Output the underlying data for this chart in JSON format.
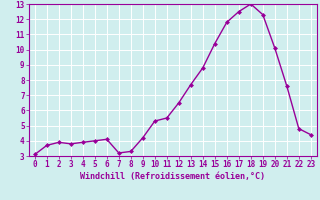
{
  "x": [
    0,
    1,
    2,
    3,
    4,
    5,
    6,
    7,
    8,
    9,
    10,
    11,
    12,
    13,
    14,
    15,
    16,
    17,
    18,
    19,
    20,
    21,
    22,
    23
  ],
  "y": [
    3.1,
    3.7,
    3.9,
    3.8,
    3.9,
    4.0,
    4.1,
    3.2,
    3.3,
    4.2,
    5.3,
    5.5,
    6.5,
    7.7,
    8.8,
    10.4,
    11.8,
    12.5,
    13.0,
    12.3,
    10.1,
    7.6,
    4.8,
    4.4
  ],
  "line_color": "#990099",
  "marker": "D",
  "marker_size": 2.0,
  "bg_color": "#d0eeee",
  "grid_color": "#ffffff",
  "xlabel": "Windchill (Refroidissement éolien,°C)",
  "xlabel_color": "#990099",
  "tick_color": "#990099",
  "ylim": [
    3,
    13
  ],
  "xlim": [
    -0.5,
    23.5
  ],
  "yticks": [
    3,
    4,
    5,
    6,
    7,
    8,
    9,
    10,
    11,
    12,
    13
  ],
  "xticks": [
    0,
    1,
    2,
    3,
    4,
    5,
    6,
    7,
    8,
    9,
    10,
    11,
    12,
    13,
    14,
    15,
    16,
    17,
    18,
    19,
    20,
    21,
    22,
    23
  ],
  "line_width": 1.0,
  "tick_fontsize": 5.5,
  "xlabel_fontsize": 6.0
}
